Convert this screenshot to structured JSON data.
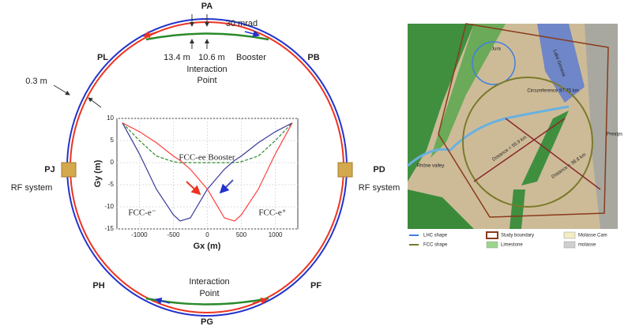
{
  "diagram": {
    "points": [
      "PA",
      "PB",
      "PD",
      "PF",
      "PG",
      "PH",
      "PJ",
      "PL"
    ],
    "angle_label": "30 mrad",
    "distance_left": "13.4 m",
    "distance_right": "10.6 m",
    "booster_label": "Booster",
    "interaction_top": [
      "Interaction",
      "Point"
    ],
    "interaction_bottom": [
      "Interaction",
      "Point"
    ],
    "offset_label": "0.3 m",
    "rf_left": "RF system",
    "rf_right": "RF system"
  },
  "chart_data": {
    "type": "line",
    "x_label": "Gx (m)",
    "y_label": "Gy (m)",
    "x": [
      -1250,
      -1000,
      -750,
      -500,
      -400,
      -250,
      0,
      250,
      400,
      500,
      750,
      1000,
      1250
    ],
    "series": [
      {
        "name": "FCC-ee Booster",
        "color": "#2e8b2e",
        "dashed": true,
        "values": [
          9,
          5,
          1.5,
          0.2,
          0,
          0,
          0,
          0,
          0,
          0.2,
          1.5,
          5,
          9
        ]
      },
      {
        "name": "FCC-e⁻",
        "color": "#3a3a9a",
        "dashed": false,
        "values": [
          9,
          2,
          -6,
          -11.8,
          -13.2,
          -12.5,
          -6,
          -1.5,
          0.5,
          1.5,
          4.5,
          7,
          9
        ]
      },
      {
        "name": "FCC-e⁺",
        "color": "#ff4040",
        "dashed": false,
        "values": [
          9,
          7,
          4.5,
          1.5,
          0.5,
          -1.5,
          -6,
          -12.5,
          -13.2,
          -11.8,
          -6,
          2,
          9
        ]
      }
    ],
    "xlim": [
      -1330,
      1330
    ],
    "ylim": [
      -15,
      10
    ],
    "xticks": [
      -1000,
      -500,
      0,
      500,
      1000
    ],
    "yticks": [
      10,
      5,
      0,
      -5,
      -10,
      -15
    ],
    "grid": true
  },
  "map": {
    "labels": [
      "Jura",
      "Lake Geneva",
      "Circumference 97.75 km",
      "Distance = 55.9 km",
      "Distance = 38.8 km",
      "Rhône valley",
      "Prealps"
    ],
    "legend": [
      "LHC shape",
      "Study boundary",
      "Molasse Cam",
      "FCC shape",
      "Limestone",
      "molasse"
    ]
  }
}
